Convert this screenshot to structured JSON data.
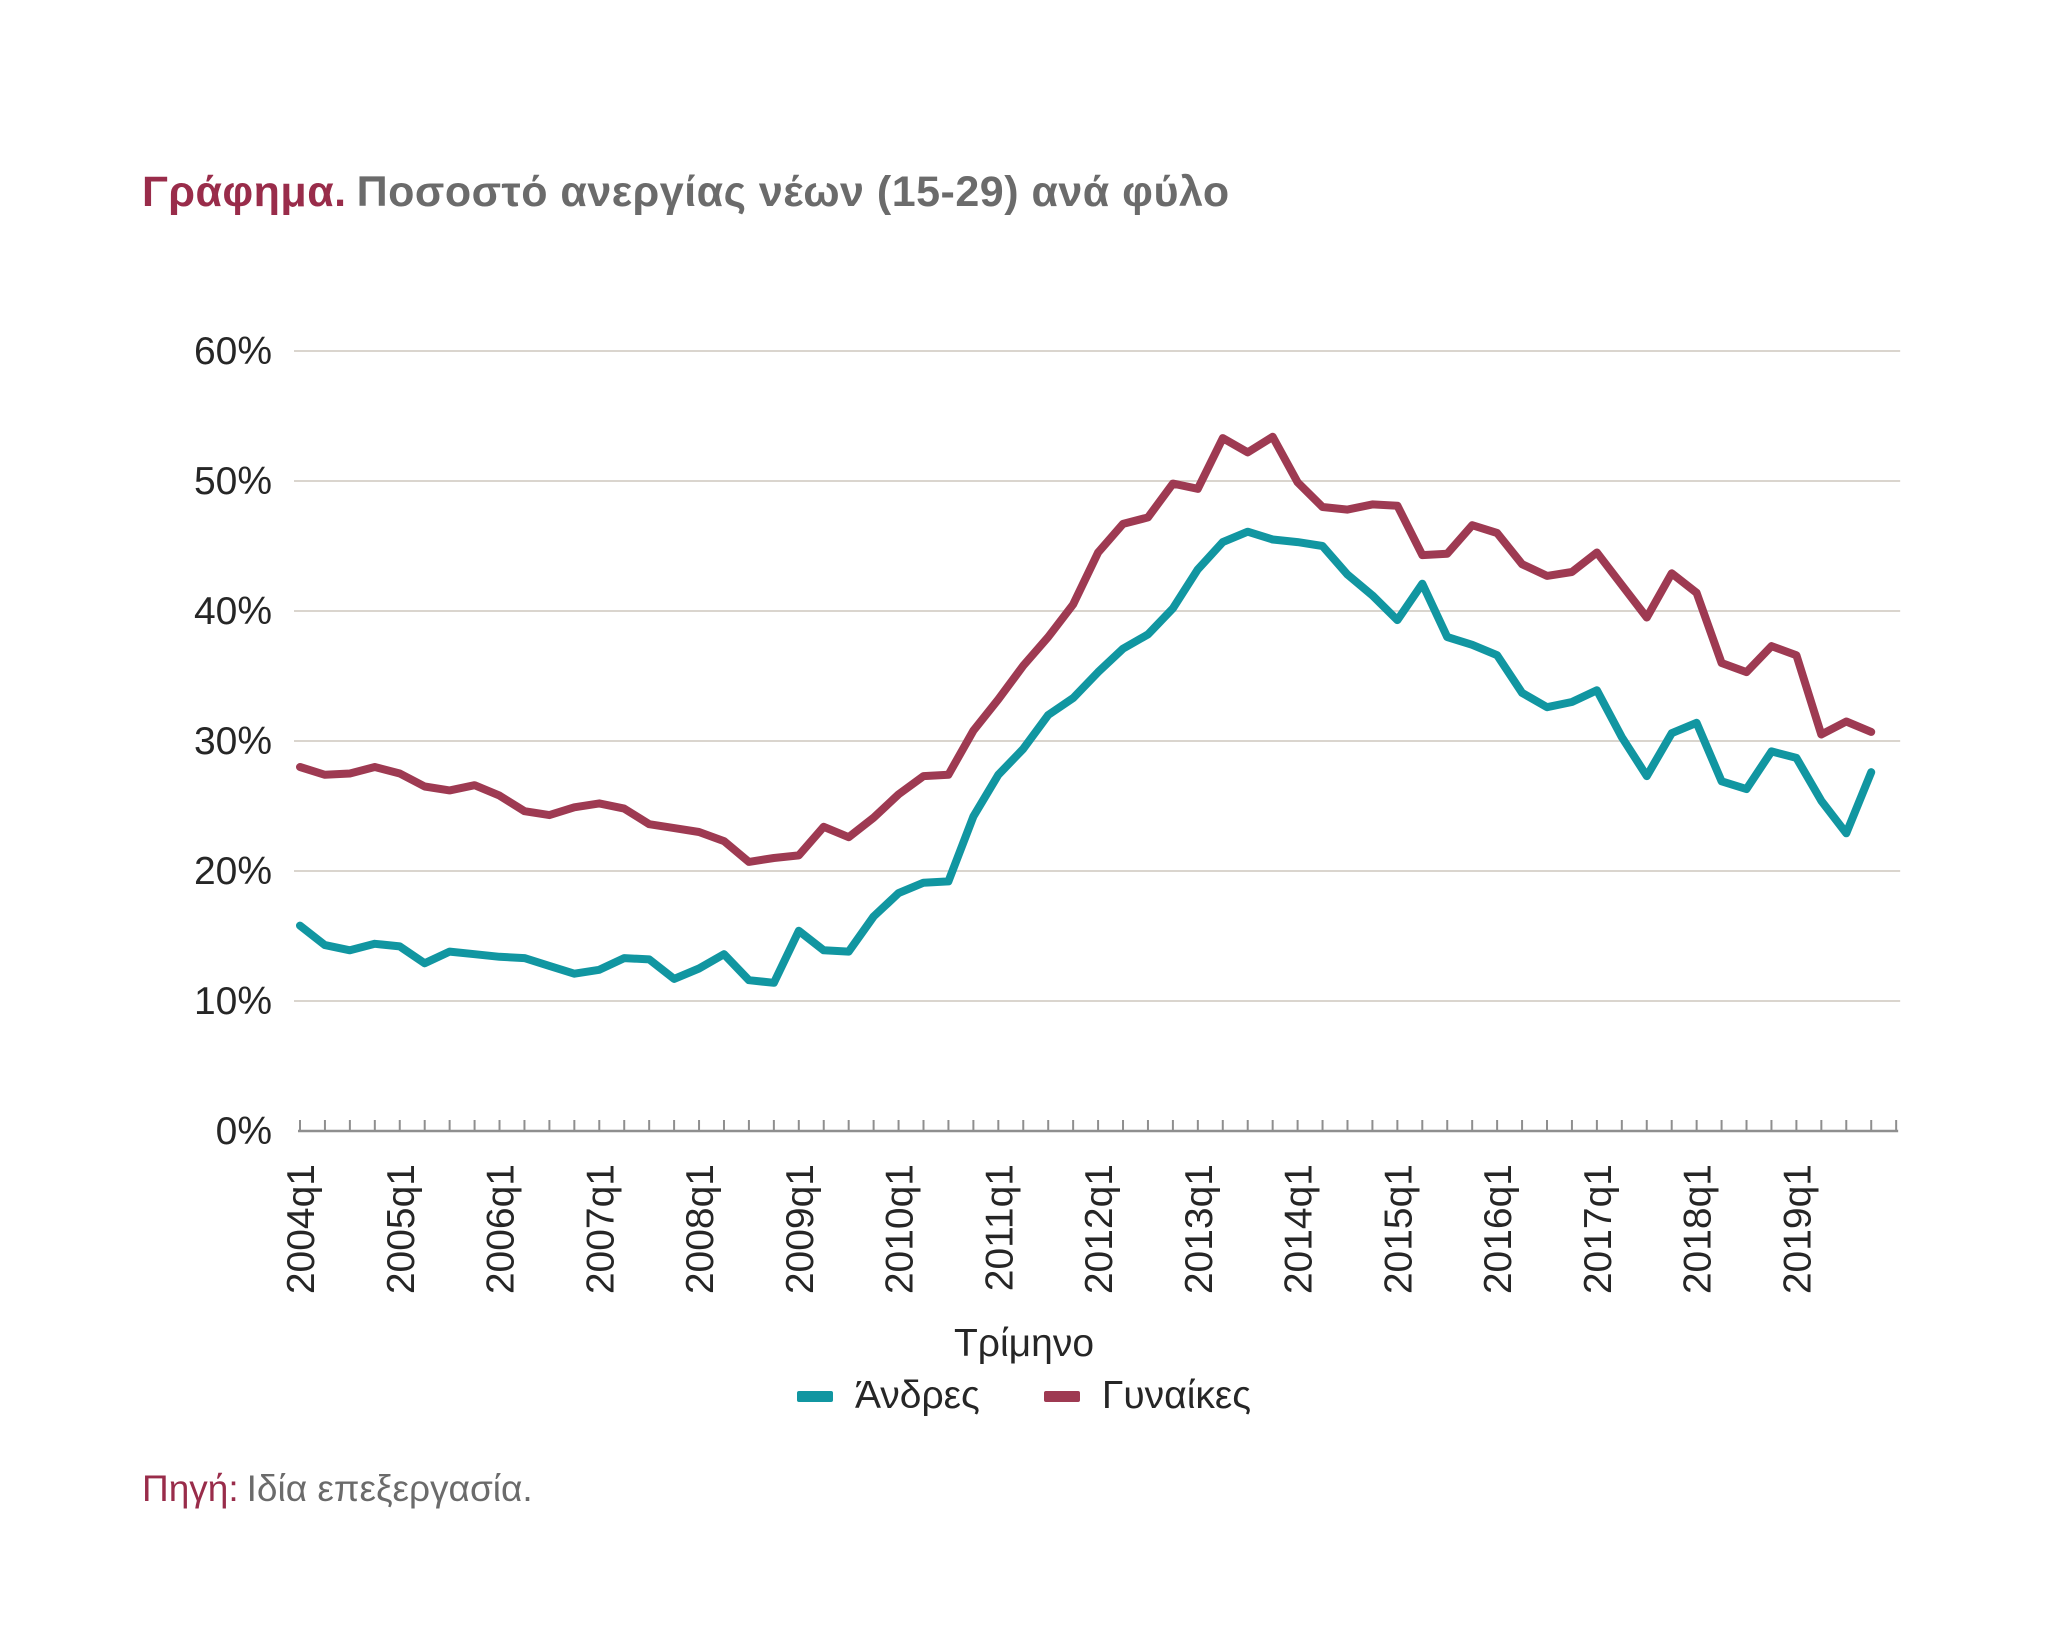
{
  "title": {
    "prefix": "Γράφημα.",
    "text": "Ποσοστό ανεργίας νέων (15-29) ανά φύλο"
  },
  "source": {
    "label": "Πηγή:",
    "text": "Ιδία επεξεργασία."
  },
  "colors": {
    "men_line": "#1196A1",
    "women_line": "#9E3A52",
    "title_accent": "#992C4A",
    "title_gray": "#6B6B6B",
    "gridline": "#DAD5CE",
    "axis": "#8F8F8F",
    "tick_text": "#262626"
  },
  "chart_data": {
    "type": "line",
    "title": "Ποσοστό ανεργίας νέων (15-29) ανά φύλο",
    "xlabel": "Τρίμηνο",
    "ylabel": "",
    "ylim": [
      0,
      60
    ],
    "y_tick_labels": [
      "0%",
      "10%",
      "20%",
      "30%",
      "40%",
      "50%",
      "60%"
    ],
    "grid": "horizontal",
    "legend_position": "bottom",
    "x_start": "2004q1",
    "x_end": "2019q4",
    "n_points": 64,
    "x_tick_labels": [
      "2004q1",
      "2005q1",
      "2006q1",
      "2007q1",
      "2008q1",
      "2009q1",
      "2010q1",
      "2011q1",
      "2012q1",
      "2013q1",
      "2014q1",
      "2015q1",
      "2016q1",
      "2017q1",
      "2018q1",
      "2019q1"
    ],
    "series": [
      {
        "name": "Άνδρες",
        "color": "#1196A1",
        "values": [
          15.8,
          14.3,
          13.9,
          14.4,
          14.2,
          12.9,
          13.8,
          13.6,
          13.4,
          13.3,
          12.7,
          12.1,
          12.4,
          13.3,
          13.2,
          11.7,
          12.5,
          13.6,
          11.6,
          11.4,
          15.4,
          13.9,
          13.8,
          16.5,
          18.3,
          19.1,
          19.2,
          24.2,
          27.4,
          29.4,
          32.0,
          33.3,
          35.3,
          37.1,
          38.2,
          40.2,
          43.2,
          45.3,
          46.1,
          45.5,
          45.3,
          45.0,
          42.8,
          41.2,
          39.3,
          42.1,
          38.0,
          37.4,
          36.6,
          33.7,
          32.6,
          33.0,
          33.9,
          30.3,
          27.3,
          30.6,
          31.4,
          26.9,
          26.3,
          29.2,
          28.7,
          25.4,
          22.9,
          27.6
        ]
      },
      {
        "name": "Γυναίκες",
        "color": "#9E3A52",
        "values": [
          28.0,
          27.4,
          27.5,
          28.0,
          27.5,
          26.5,
          26.2,
          26.6,
          25.8,
          24.6,
          24.3,
          24.9,
          25.2,
          24.8,
          23.6,
          23.3,
          23.0,
          22.3,
          20.7,
          21.0,
          21.2,
          23.4,
          22.6,
          24.1,
          25.9,
          27.3,
          27.4,
          30.8,
          33.2,
          35.8,
          38.0,
          40.5,
          44.5,
          46.7,
          47.2,
          49.8,
          49.4,
          53.3,
          52.2,
          53.4,
          49.9,
          48.0,
          47.8,
          48.2,
          48.1,
          44.3,
          44.4,
          46.6,
          46.0,
          43.6,
          42.7,
          43.0,
          44.5,
          42.0,
          39.5,
          42.9,
          41.4,
          36.0,
          35.3,
          37.3,
          36.6,
          30.5,
          31.5,
          30.7
        ]
      }
    ]
  }
}
